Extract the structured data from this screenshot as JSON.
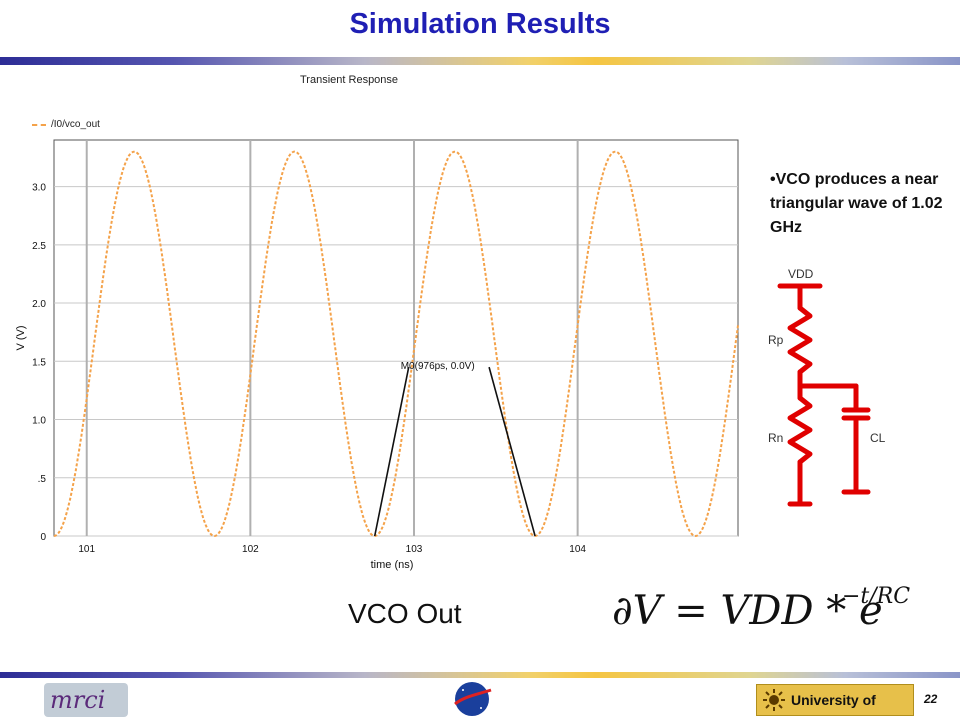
{
  "slide": {
    "title": "Simulation Results",
    "page_number": "22"
  },
  "chart_data": {
    "type": "line",
    "title": "Transient Response",
    "xlabel": "time (ns)",
    "ylabel": "V (V)",
    "xlim": [
      100.8,
      104.98
    ],
    "ylim": [
      0,
      3.4
    ],
    "x_ticks": [
      "101",
      "102",
      "103",
      "104"
    ],
    "y_ticks": [
      "0",
      ".5",
      "1.0",
      "1.5",
      "2.0",
      "2.5",
      "3.0"
    ],
    "grid": true,
    "legend_position": "top-left",
    "series": [
      {
        "name": "/I0/vco_out",
        "color": "#f4a24a",
        "period_ns": 0.98,
        "min_v": 0,
        "max_v": 3.3,
        "first_trough_ns": 100.8
      }
    ],
    "annotation": {
      "text": "M0(976ps, 0.0V)",
      "points_ns": [
        102.76,
        103.74
      ],
      "value_v": 0.0
    }
  },
  "notes": {
    "bullet": "•VCO produces a near triangular wave of 1.02 GHz"
  },
  "schematic": {
    "vdd": "VDD",
    "rp": "Rp",
    "rn": "Rn",
    "cl": "CL",
    "color": "#e00000"
  },
  "caption": {
    "text": "VCO Out"
  },
  "formula": {
    "lhs": "∂V = VDD * e",
    "exponent": "−t/RC"
  },
  "footer": {
    "left_logo": "mrci",
    "right_logo": "University of Idaho"
  }
}
